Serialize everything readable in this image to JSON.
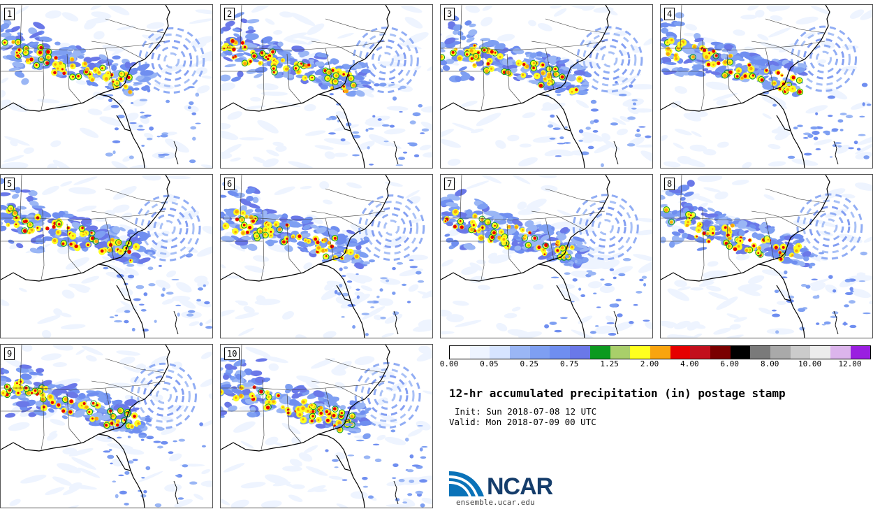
{
  "colors": {
    "scale": [
      "#ffffff",
      "#eef4ff",
      "#d6e4ff",
      "#9ab6f5",
      "#7e9ff2",
      "#6f8ef0",
      "#6a78e8",
      "#0c9a1f",
      "#a9cf6a",
      "#ffff1f",
      "#f9a40e",
      "#e60000",
      "#c20f1d",
      "#7a0000",
      "#000000",
      "#7a7a7a",
      "#a9a9a9",
      "#cbcbcb",
      "#ececec",
      "#dcb5ec",
      "#9a1fe0"
    ]
  },
  "colorbar": {
    "labels": [
      "0.00",
      "0.05",
      "0.25",
      "0.75",
      "1.25",
      "2.00",
      "4.00",
      "6.00",
      "8.00",
      "10.00",
      "12.00"
    ]
  },
  "panels": [
    {
      "number": "1"
    },
    {
      "number": "2"
    },
    {
      "number": "3"
    },
    {
      "number": "4"
    },
    {
      "number": "5"
    },
    {
      "number": "6"
    },
    {
      "number": "7"
    },
    {
      "number": "8"
    },
    {
      "number": "9"
    },
    {
      "number": "10"
    }
  ],
  "title": "12-hr accumulated precipitation (in) postage stamp",
  "init_text": "Init: Sun 2018-07-08 12 UTC",
  "valid_text": "Valid: Mon 2018-07-09 00 UTC",
  "logo": {
    "name": "NCAR",
    "url": "ensemble.ucar.edu"
  }
}
